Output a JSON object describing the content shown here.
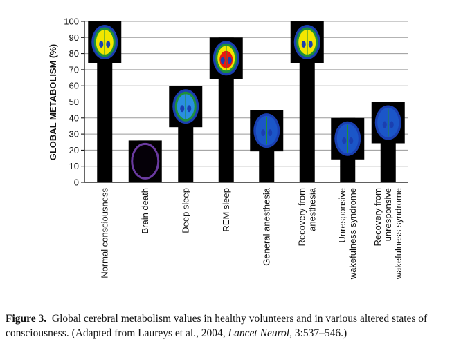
{
  "chart_data": {
    "type": "bar",
    "ylabel": "GLOBAL METABOLISM (%)",
    "ylim": [
      0,
      100
    ],
    "yticks": [
      0,
      10,
      20,
      30,
      40,
      50,
      60,
      70,
      80,
      90,
      100
    ],
    "grid": true,
    "categories": [
      [
        "Normal consciousness"
      ],
      [
        "Brain death"
      ],
      [
        "Deep sleep"
      ],
      [
        "REM sleep"
      ],
      [
        "General anesthesia"
      ],
      [
        "Recovery from",
        "anesthesia"
      ],
      [
        "Unresponsive",
        "wakefulness syndrome"
      ],
      [
        "Recovery from",
        "unresponsive",
        "wakefulness syndrome"
      ]
    ],
    "values": [
      100,
      26,
      60,
      90,
      45,
      100,
      40,
      50
    ],
    "scan_palette": [
      "#f2e600",
      "#1f8f3a",
      "#1a3fb0",
      "#6a3aa0"
    ]
  },
  "caption": {
    "label": "Figure 3.",
    "text_before": "Global cerebral metabolism values in healthy volunteers and in various altered states of consciousness. (Adapted from Laureys et al., 2004, ",
    "journal": "Lancet Neurol",
    "text_after": ", 3:537–546.)"
  }
}
